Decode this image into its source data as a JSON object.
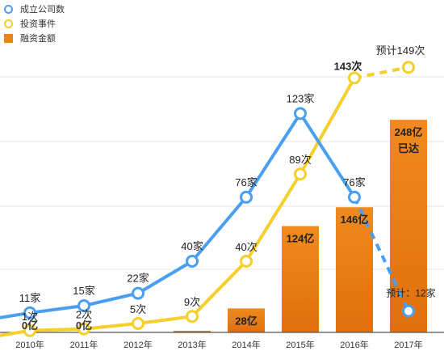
{
  "legend": {
    "companies_label": "成立公司数",
    "investments_label": "投资事件",
    "funding_label": "融资金额"
  },
  "colors": {
    "companies": "#4a9ff0",
    "investments": "#f5cf2c",
    "funding_top": "#f08a1e",
    "funding_bottom": "#e06f0c",
    "grid": "#e4e4e4"
  },
  "chart_data": {
    "type": "bar",
    "categories": [
      "2010年",
      "2011年",
      "2012年",
      "2013年",
      "2014年",
      "2015年",
      "2016年",
      "2017年"
    ],
    "series": [
      {
        "name": "成立公司数",
        "type": "line",
        "values": [
          11,
          15,
          22,
          40,
          76,
          123,
          76,
          12
        ],
        "labels": [
          "11家",
          "15家",
          "22家",
          "40家",
          "76家",
          "123家",
          "76家",
          "预计：12家"
        ],
        "projected_last": true
      },
      {
        "name": "投资事件",
        "type": "line",
        "values": [
          1,
          2,
          5,
          9,
          40,
          89,
          143,
          149
        ],
        "labels": [
          "1次",
          "2次",
          "5次",
          "9次",
          "40次",
          "89次",
          "143次",
          "预计149次"
        ],
        "projected_last": true
      },
      {
        "name": "融资金额",
        "type": "bar",
        "values": [
          0,
          0,
          0,
          1,
          28,
          124,
          146,
          248
        ],
        "labels": [
          "0亿",
          "0亿",
          "",
          "",
          "28亿",
          "124亿",
          "146亿",
          "248亿"
        ],
        "last_label_suffix": "已达"
      }
    ],
    "xlabel": "",
    "ylabel": "",
    "grid": true,
    "legend_position": "top-left"
  }
}
